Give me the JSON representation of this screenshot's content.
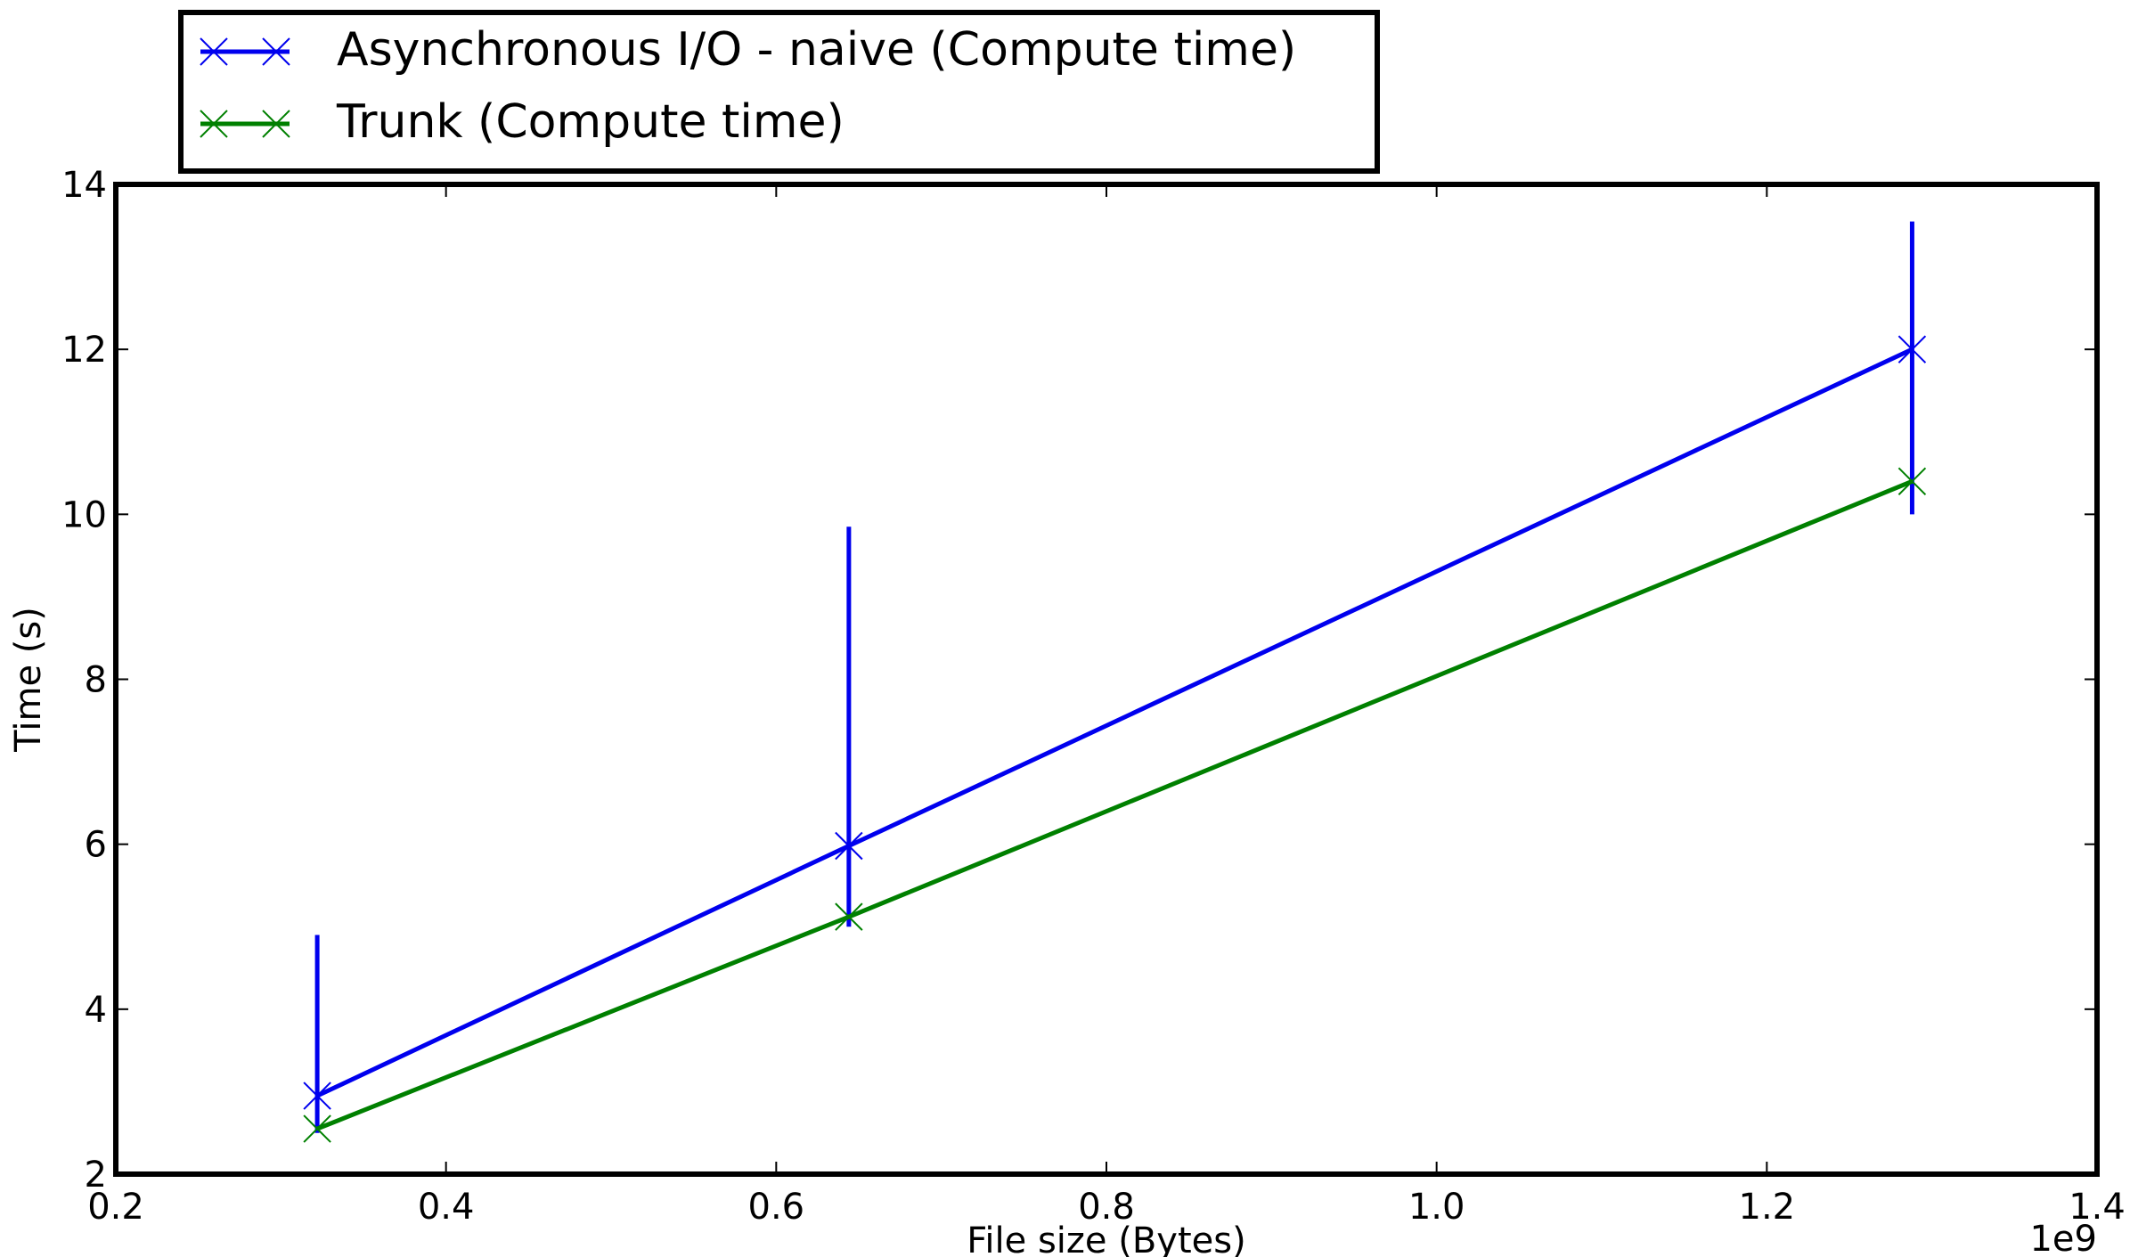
{
  "chart_data": {
    "type": "line",
    "xlabel": "File size (Bytes)",
    "ylabel": "Time (s)",
    "x_offset_label": "1e9",
    "xlim": [
      0.2,
      1.4
    ],
    "ylim": [
      2,
      14
    ],
    "xticks": [
      "0.2",
      "0.4",
      "0.6",
      "0.8",
      "1.0",
      "1.2",
      "1.4"
    ],
    "yticks": [
      "2",
      "4",
      "6",
      "8",
      "10",
      "12",
      "14"
    ],
    "grid": false,
    "legend_position": "top-left, above plot",
    "marker": "x",
    "series": [
      {
        "name": "Asynchronous I/O - naive (Compute time)",
        "color": "#0000ee",
        "x": [
          0.322,
          0.644,
          1.288
        ],
        "y": [
          2.95,
          5.98,
          12.0
        ],
        "error_low": [
          2.5,
          5.0,
          10.0
        ],
        "error_high": [
          4.9,
          9.85,
          13.55
        ]
      },
      {
        "name": "Trunk (Compute time)",
        "color": "#008000",
        "x": [
          0.322,
          0.644,
          1.288
        ],
        "y": [
          2.55,
          5.12,
          10.4
        ]
      }
    ]
  }
}
